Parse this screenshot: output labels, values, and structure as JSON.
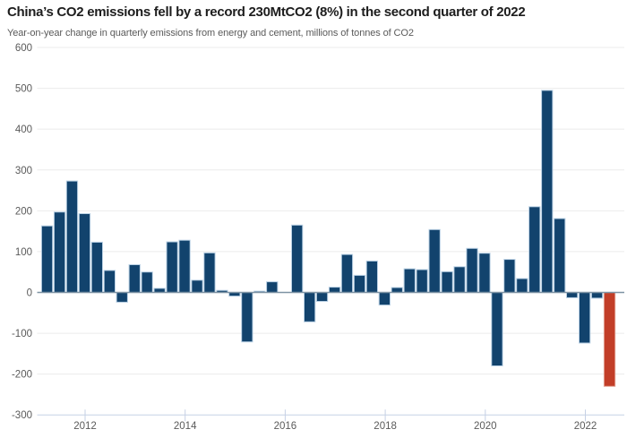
{
  "header": {
    "title": "China’s CO2 emissions fell by a record 230MtCO2 (8%) in the second quarter of 2022",
    "subtitle": "Year-on-year change in quarterly emissions from energy and cement, millions of tonnes of CO2"
  },
  "chart_data": {
    "type": "bar",
    "title": "China’s CO2 emissions fell by a record 230MtCO2 (8%) in the second quarter of 2022",
    "subtitle": "Year-on-year change in quarterly emissions from energy and cement, millions of tonnes of CO2",
    "xlabel": "",
    "ylabel": "millions of tonnes of CO2",
    "ylim": [
      -300,
      600
    ],
    "yticks": [
      600,
      500,
      400,
      300,
      200,
      100,
      0,
      -100,
      -200,
      -300
    ],
    "xticks": [
      "2012",
      "2014",
      "2016",
      "2018",
      "2020",
      "2022"
    ],
    "grid": true,
    "legend": "none",
    "categories": [
      "2011 Q1",
      "2011 Q2",
      "2011 Q3",
      "2011 Q4",
      "2012 Q1",
      "2012 Q2",
      "2012 Q3",
      "2012 Q4",
      "2013 Q1",
      "2013 Q2",
      "2013 Q3",
      "2013 Q4",
      "2014 Q1",
      "2014 Q2",
      "2014 Q3",
      "2014 Q4",
      "2015 Q1",
      "2015 Q2",
      "2015 Q3",
      "2015 Q4",
      "2016 Q1",
      "2016 Q2",
      "2016 Q3",
      "2016 Q4",
      "2017 Q1",
      "2017 Q2",
      "2017 Q3",
      "2017 Q4",
      "2018 Q1",
      "2018 Q2",
      "2018 Q3",
      "2018 Q4",
      "2019 Q1",
      "2019 Q2",
      "2019 Q3",
      "2019 Q4",
      "2020 Q1",
      "2020 Q2",
      "2020 Q3",
      "2020 Q4",
      "2021 Q1",
      "2021 Q2",
      "2021 Q3",
      "2021 Q4",
      "2022 Q1",
      "2022 Q2"
    ],
    "values": [
      163,
      197,
      273,
      193,
      123,
      54,
      -24,
      68,
      50,
      10,
      124,
      128,
      30,
      97,
      5,
      -9,
      -121,
      3,
      26,
      0,
      165,
      -72,
      -22,
      13,
      93,
      42,
      77,
      -31,
      12,
      58,
      56,
      154,
      51,
      63,
      108,
      96,
      -180,
      81,
      34,
      210,
      495,
      181,
      -13,
      -124,
      -14,
      -230
    ],
    "highlight_index": 45,
    "highlight_category": "2022 Q2",
    "colors": {
      "bar_fill": "#12436d",
      "bar_stroke": "#b9d0e4",
      "highlight_fill": "#c23e28",
      "highlight_stroke": "#e2a192",
      "gridline": "#ebebeb",
      "axis_line": "#c6d1e5",
      "zero_line": "#7e93a4",
      "label_text": "#5a5a5a",
      "title_text": "#1d1d1d"
    }
  }
}
